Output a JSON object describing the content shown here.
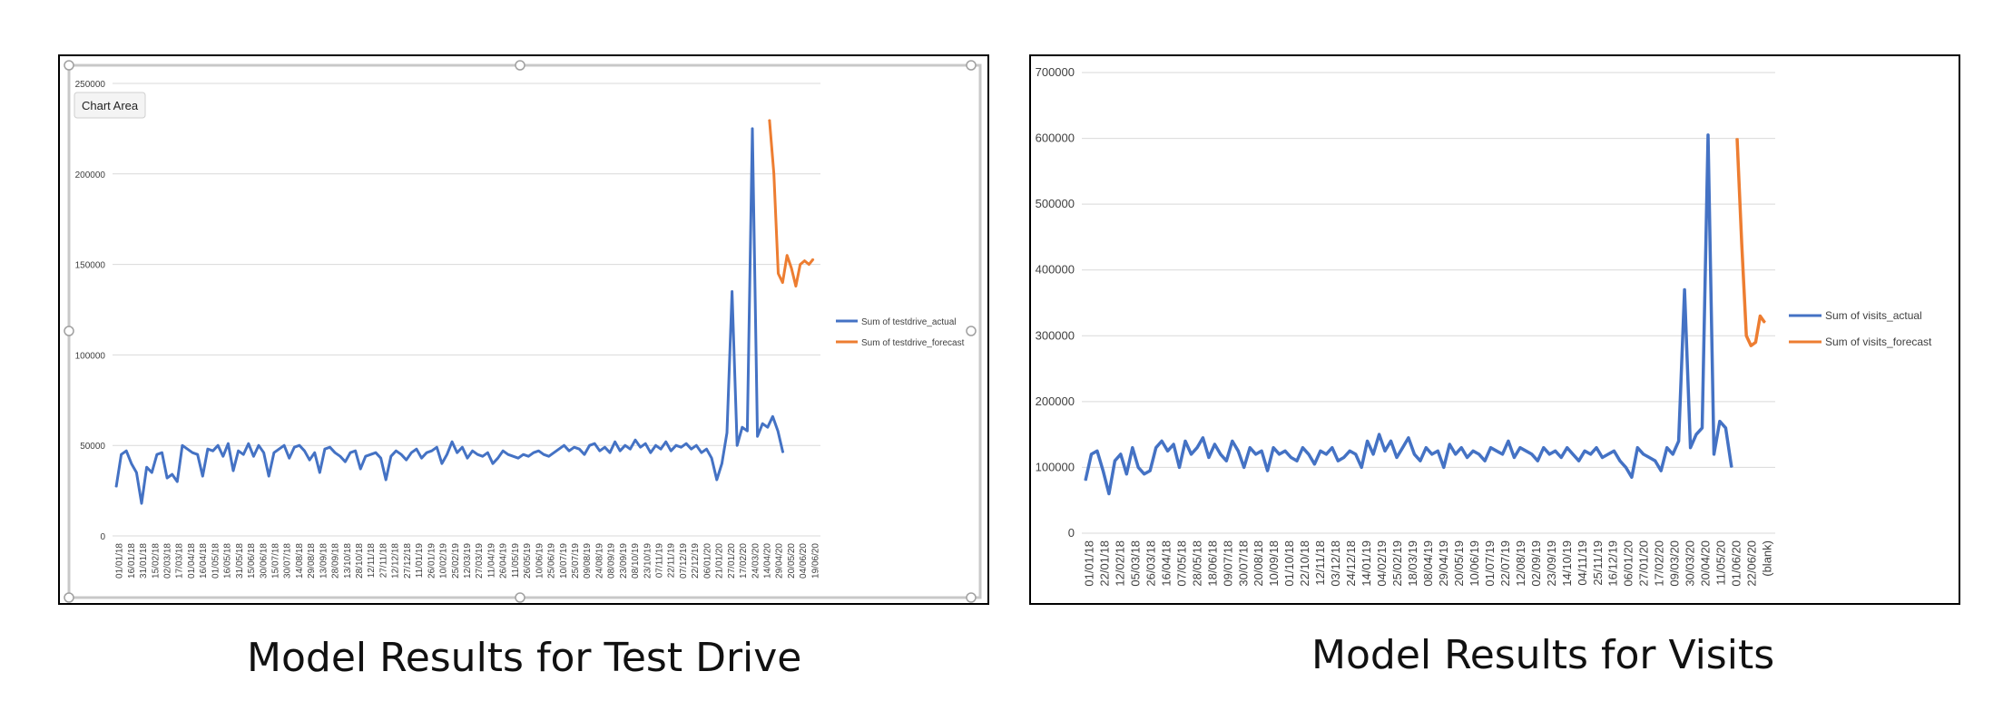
{
  "captions": {
    "left": "Model Results for Test Drive",
    "right": "Model Results for Visits"
  },
  "tooltip": {
    "label": "Chart Area"
  },
  "colors": {
    "actual": "#4472C4",
    "forecast": "#ED7D31",
    "grid": "#d9d9d9",
    "text": "#404040"
  },
  "chart_data": [
    {
      "type": "line",
      "title": "",
      "ylim": [
        0,
        250000
      ],
      "yticks": [
        0,
        50000,
        100000,
        150000,
        200000,
        250000
      ],
      "legend_position": "right",
      "grid": true,
      "x_tick_labels": [
        "01/01/18",
        "16/01/18",
        "31/01/18",
        "15/02/18",
        "02/03/18",
        "17/03/18",
        "01/04/18",
        "16/04/18",
        "01/05/18",
        "16/05/18",
        "31/05/18",
        "15/06/18",
        "30/06/18",
        "15/07/18",
        "30/07/18",
        "14/08/18",
        "29/08/18",
        "13/09/18",
        "28/09/18",
        "13/10/18",
        "28/10/18",
        "12/11/18",
        "27/11/18",
        "12/12/18",
        "27/12/18",
        "11/01/19",
        "26/01/19",
        "10/02/19",
        "25/02/19",
        "12/03/19",
        "27/03/19",
        "11/04/19",
        "26/04/19",
        "11/05/19",
        "26/05/19",
        "10/06/19",
        "25/06/19",
        "10/07/19",
        "25/07/19",
        "09/08/19",
        "24/08/19",
        "08/09/19",
        "23/09/19",
        "08/10/19",
        "23/10/19",
        "07/11/19",
        "22/11/19",
        "07/12/19",
        "22/12/19",
        "06/01/20",
        "21/01/20",
        "27/01/20",
        "17/02/20",
        "24/03/20",
        "14/04/20",
        "29/04/20",
        "20/05/20",
        "04/06/20",
        "19/06/20"
      ],
      "series": [
        {
          "name": "Sum of testdrive_actual",
          "key": "actual",
          "values": [
            27000,
            45000,
            47000,
            40000,
            35000,
            18000,
            38000,
            35000,
            45000,
            46000,
            32000,
            34000,
            30000,
            50000,
            48000,
            46000,
            45000,
            33000,
            48000,
            47000,
            50000,
            44000,
            51000,
            36000,
            47000,
            45000,
            51000,
            44000,
            50000,
            46000,
            33000,
            46000,
            48000,
            50000,
            43000,
            49000,
            50000,
            47000,
            42000,
            46000,
            35000,
            48000,
            49000,
            46000,
            44000,
            41000,
            46000,
            47000,
            37000,
            44000,
            45000,
            46000,
            43000,
            31000,
            44000,
            47000,
            45000,
            42000,
            46000,
            48000,
            43000,
            46000,
            47000,
            49000,
            40000,
            45000,
            52000,
            46000,
            49000,
            43000,
            47000,
            45000,
            44000,
            46000,
            40000,
            43000,
            47000,
            45000,
            44000,
            43000,
            45000,
            44000,
            46000,
            47000,
            45000,
            44000,
            46000,
            48000,
            50000,
            47000,
            49000,
            48000,
            45000,
            50000,
            51000,
            47000,
            49000,
            46000,
            52000,
            47000,
            50000,
            48000,
            53000,
            49000,
            51000,
            46000,
            50000,
            48000,
            52000,
            47000,
            50000,
            49000,
            51000,
            48000,
            50000,
            46000,
            48000,
            43000,
            31000,
            40000,
            57000,
            135000,
            50000,
            60000,
            58000,
            225000,
            55000,
            62000,
            60000,
            66000,
            58000,
            46000
          ]
        },
        {
          "name": "Sum of testdrive_forecast",
          "key": "forecast",
          "x_start_frac": 0.928,
          "values": [
            230000,
            200000,
            145000,
            140000,
            155000,
            148000,
            138000,
            150000,
            152000,
            150000,
            153000
          ]
        }
      ]
    },
    {
      "type": "line",
      "title": "",
      "ylim": [
        0,
        700000
      ],
      "yticks": [
        0,
        100000,
        200000,
        300000,
        400000,
        500000,
        600000,
        700000
      ],
      "legend_position": "right",
      "grid": true,
      "x_tick_labels": [
        "01/01/18",
        "22/01/18",
        "12/02/18",
        "05/03/18",
        "26/03/18",
        "16/04/18",
        "07/05/18",
        "28/05/18",
        "18/06/18",
        "09/07/18",
        "30/07/18",
        "20/08/18",
        "10/09/18",
        "01/10/18",
        "22/10/18",
        "12/11/18",
        "03/12/18",
        "24/12/18",
        "14/01/19",
        "04/02/19",
        "25/02/19",
        "18/03/19",
        "08/04/19",
        "29/04/19",
        "20/05/19",
        "10/06/19",
        "01/07/19",
        "22/07/19",
        "12/08/19",
        "02/09/19",
        "23/09/19",
        "14/10/19",
        "04/11/19",
        "25/11/19",
        "16/12/19",
        "06/01/20",
        "27/01/20",
        "17/02/20",
        "09/03/20",
        "30/03/20",
        "20/04/20",
        "11/05/20",
        "01/06/20",
        "22/06/20",
        "(blank)"
      ],
      "series": [
        {
          "name": "Sum of visits_actual",
          "key": "actual",
          "values": [
            80000,
            120000,
            125000,
            95000,
            60000,
            110000,
            120000,
            90000,
            130000,
            100000,
            90000,
            95000,
            130000,
            140000,
            125000,
            135000,
            100000,
            140000,
            120000,
            130000,
            145000,
            115000,
            135000,
            120000,
            110000,
            140000,
            125000,
            100000,
            130000,
            120000,
            125000,
            95000,
            130000,
            120000,
            125000,
            115000,
            110000,
            130000,
            120000,
            105000,
            125000,
            120000,
            130000,
            110000,
            115000,
            125000,
            120000,
            100000,
            140000,
            120000,
            150000,
            125000,
            140000,
            115000,
            130000,
            145000,
            120000,
            110000,
            130000,
            120000,
            125000,
            100000,
            135000,
            120000,
            130000,
            115000,
            125000,
            120000,
            110000,
            130000,
            125000,
            120000,
            140000,
            115000,
            130000,
            125000,
            120000,
            110000,
            130000,
            120000,
            125000,
            115000,
            130000,
            120000,
            110000,
            125000,
            120000,
            130000,
            115000,
            120000,
            125000,
            110000,
            100000,
            85000,
            130000,
            120000,
            115000,
            110000,
            95000,
            130000,
            120000,
            140000,
            370000,
            130000,
            150000,
            160000,
            605000,
            120000,
            170000,
            160000,
            100000
          ]
        },
        {
          "name": "Sum of visits_forecast",
          "key": "forecast",
          "x_start_frac": 0.945,
          "values": [
            600000,
            440000,
            300000,
            285000,
            290000,
            330000,
            320000
          ]
        }
      ]
    }
  ]
}
